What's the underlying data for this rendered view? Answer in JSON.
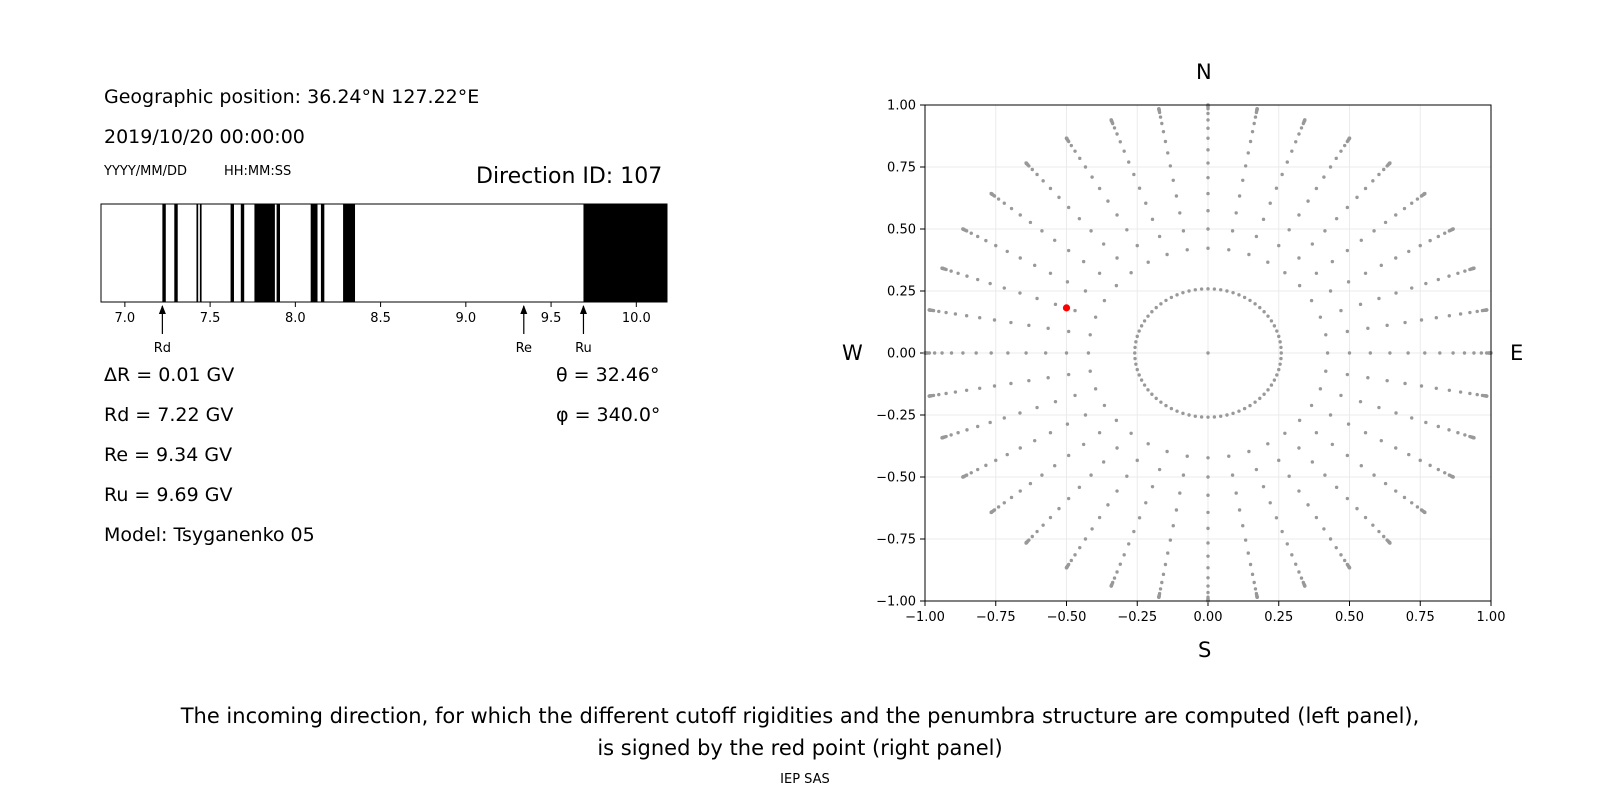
{
  "info": {
    "geographic_position": "Geographic position: 36.24°N 127.22°E",
    "datetime": "2019/10/20 00:00:00",
    "date_format": "YYYY/MM/DD",
    "time_format": "HH:MM:SS",
    "direction_id": "Direction ID: 107",
    "delta_r": "ΔR = 0.01 GV",
    "rd": "Rd = 7.22 GV",
    "re": "Re = 9.34 GV",
    "ru": "Ru = 9.69 GV",
    "model": "Model: Tsyganenko 05",
    "theta": "θ = 32.46°",
    "phi": "φ = 340.0°"
  },
  "compass": {
    "north": "N",
    "south": "S",
    "west": "W",
    "east": "E"
  },
  "caption": {
    "line1": "The incoming direction, for which the different cutoff rigidities and the penumbra structure are computed (left panel),",
    "line2": "is signed by the red point (right panel)"
  },
  "credit": "IEP SAS",
  "chart_data": [
    {
      "type": "penumbra",
      "xlim": [
        6.86,
        10.18
      ],
      "xticks": [
        7.0,
        7.5,
        8.0,
        8.5,
        9.0,
        9.5,
        10.0
      ],
      "xtick_labels": [
        "7.0",
        "7.5",
        "8.0",
        "8.5",
        "9.0",
        "9.5",
        "10.0"
      ],
      "forbidden_bands": [
        [
          7.22,
          7.24
        ],
        [
          7.29,
          7.31
        ],
        [
          7.42,
          7.43
        ],
        [
          7.44,
          7.45
        ],
        [
          7.62,
          7.64
        ],
        [
          7.68,
          7.7
        ],
        [
          7.76,
          7.88
        ],
        [
          7.89,
          7.91
        ],
        [
          8.09,
          8.13
        ],
        [
          8.15,
          8.17
        ],
        [
          8.28,
          8.35
        ],
        [
          9.69,
          10.18
        ]
      ],
      "markers": [
        {
          "label": "Rd",
          "value": 7.22
        },
        {
          "label": "Re",
          "value": 9.34
        },
        {
          "label": "Ru",
          "value": 9.69
        }
      ]
    },
    {
      "type": "scatter",
      "xlim": [
        -1.0,
        1.0
      ],
      "ylim": [
        -1.0,
        1.0
      ],
      "xticks": [
        -1.0,
        -0.75,
        -0.5,
        -0.25,
        0.0,
        0.25,
        0.5,
        0.75,
        1.0
      ],
      "yticks": [
        -1.0,
        -0.75,
        -0.5,
        -0.25,
        0.0,
        0.25,
        0.5,
        0.75,
        1.0
      ],
      "xtick_labels": [
        "−1.00",
        "−0.75",
        "−0.50",
        "−0.25",
        "0.00",
        "0.25",
        "0.50",
        "0.75",
        "1.00"
      ],
      "ytick_labels": [
        "−1.00",
        "−0.75",
        "−0.50",
        "−0.25",
        "0.00",
        "0.25",
        "0.50",
        "0.75",
        "1.00"
      ],
      "grid": true,
      "grid_color": "#ebebeb",
      "point_color": "#999999",
      "highlight_color": "#ff0000",
      "grid_points": {
        "center": [
          0,
          0
        ],
        "theta_deg": [
          15,
          25,
          30,
          35,
          40,
          45,
          50,
          55,
          60,
          65,
          70,
          75,
          80,
          82,
          84,
          85,
          86,
          87,
          88,
          89,
          90
        ],
        "phi_step_deg": 10,
        "inner_ring_theta_deg": 15,
        "inner_ring_phi_step_deg": 5
      },
      "highlight": {
        "x": -0.5,
        "y": 0.182
      }
    }
  ]
}
